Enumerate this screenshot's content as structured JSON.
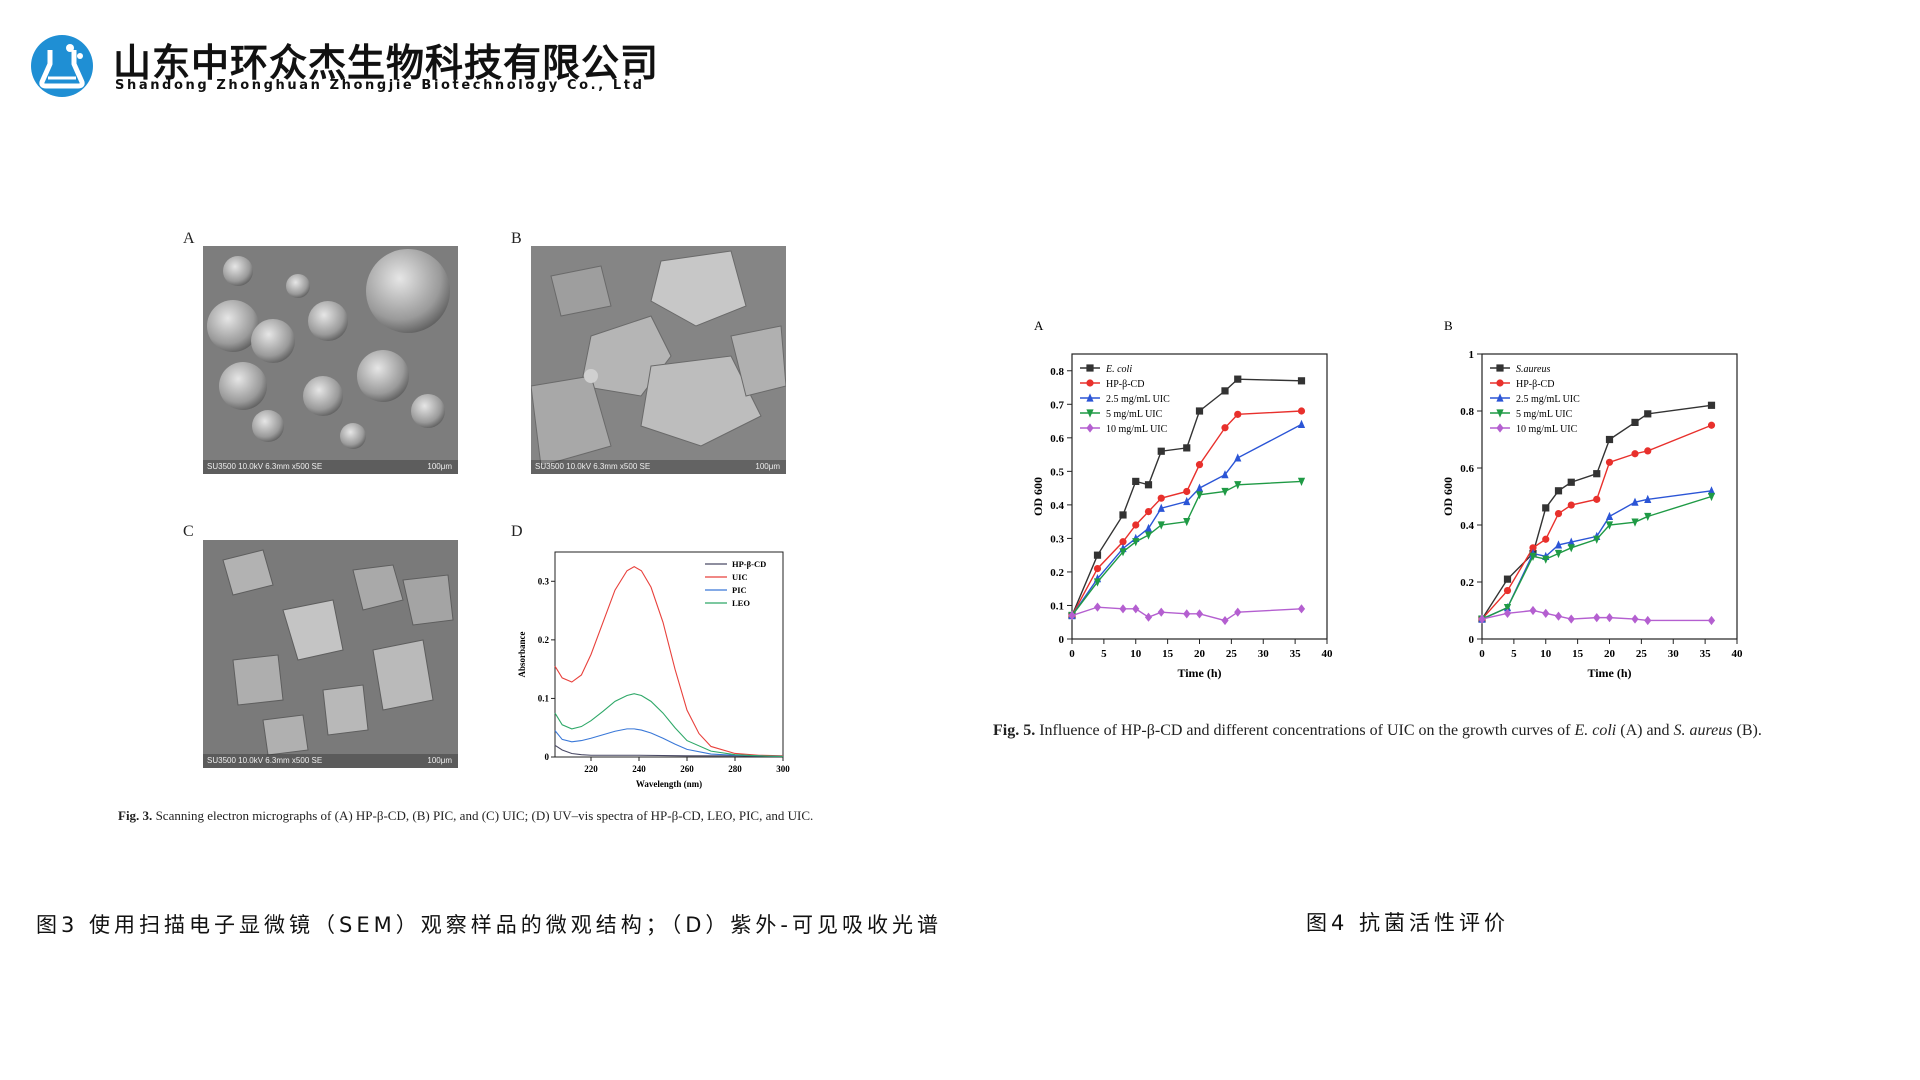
{
  "header": {
    "company_cn": "山东中环众杰生物科技有限公司",
    "company_en": "Shandong Zhonghuan Zhongjie Biotechnology Co., Ltd",
    "logo_icon": "flask-molecule-icon",
    "brand_color": "#1f8fd4"
  },
  "figure3": {
    "panels": {
      "a": {
        "letter": "A",
        "footer": "SU3500 10.0kV 6.3mm x500 SE",
        "scale": "100μm"
      },
      "b": {
        "letter": "B",
        "footer": "SU3500 10.0kV 6.3mm x500 SE",
        "scale": "100μm"
      },
      "c": {
        "letter": "C",
        "footer": "SU3500 10.0kV 6.3mm x500 SE",
        "scale": "100μm"
      },
      "d": {
        "letter": "D"
      }
    },
    "caption_bold": "Fig. 3.",
    "caption_text": "Scanning electron micrographs of (A) HP-β-CD, (B) PIC, and (C) UIC; (D) UV–vis spectra of HP-β-CD, LEO, PIC, and UIC.",
    "cn_caption": "图3 使用扫描电子显微镜（SEM）观察样品的微观结构；（D）紫外-可见吸收光谱"
  },
  "figure4": {
    "caption_bold": "Fig. 5.",
    "caption_parts": [
      "Influence of HP-β-CD and different concentrations of UIC on the growth curves of ",
      "E. coli",
      " (A) and ",
      "S. aureus",
      " (B)."
    ],
    "cn_caption": "图4 抗菌活性评价"
  },
  "chart_data": [
    {
      "panel": "D",
      "type": "line",
      "xlabel": "Wavelength (nm)",
      "ylabel": "Absorbance",
      "xlim": [
        205,
        300
      ],
      "ylim": [
        0,
        0.35
      ],
      "xticks": [
        220,
        240,
        260,
        280,
        300
      ],
      "yticks": [
        0.0,
        0.1,
        0.2,
        0.3
      ],
      "legend_position": "top-right",
      "grid": false,
      "series": [
        {
          "name": "HP-β-CD",
          "color": "#4a4a66",
          "x": [
            205,
            208,
            212,
            216,
            220,
            230,
            240,
            260,
            280,
            300
          ],
          "values": [
            0.02,
            0.012,
            0.006,
            0.004,
            0.003,
            0.003,
            0.003,
            0.002,
            0.002,
            0.001
          ]
        },
        {
          "name": "UIC",
          "color": "#e8413c",
          "x": [
            205,
            208,
            212,
            216,
            220,
            225,
            230,
            235,
            238,
            241,
            245,
            250,
            255,
            260,
            265,
            270,
            280,
            290,
            300
          ],
          "values": [
            0.155,
            0.135,
            0.128,
            0.14,
            0.175,
            0.23,
            0.285,
            0.318,
            0.325,
            0.318,
            0.29,
            0.23,
            0.15,
            0.08,
            0.04,
            0.018,
            0.006,
            0.003,
            0.002
          ]
        },
        {
          "name": "PIC",
          "color": "#3a78d8",
          "x": [
            205,
            208,
            212,
            216,
            220,
            225,
            230,
            235,
            238,
            241,
            245,
            250,
            255,
            260,
            270,
            280,
            290,
            300
          ],
          "values": [
            0.045,
            0.03,
            0.026,
            0.028,
            0.032,
            0.038,
            0.044,
            0.048,
            0.048,
            0.046,
            0.041,
            0.032,
            0.022,
            0.013,
            0.005,
            0.003,
            0.002,
            0.001
          ]
        },
        {
          "name": "LEO",
          "color": "#2ea868",
          "x": [
            205,
            208,
            212,
            216,
            220,
            225,
            230,
            235,
            238,
            241,
            245,
            250,
            255,
            260,
            270,
            280,
            290,
            300
          ],
          "values": [
            0.075,
            0.055,
            0.048,
            0.052,
            0.062,
            0.078,
            0.095,
            0.105,
            0.108,
            0.105,
            0.095,
            0.075,
            0.05,
            0.028,
            0.01,
            0.004,
            0.002,
            0.001
          ]
        }
      ]
    },
    {
      "panel": "A",
      "type": "line",
      "xlabel": "Time (h)",
      "ylabel": "OD 600",
      "xlim": [
        0,
        40
      ],
      "ylim": [
        0,
        0.85
      ],
      "xticks": [
        0,
        5,
        10,
        15,
        20,
        25,
        30,
        35,
        40
      ],
      "yticks": [
        0.0,
        0.1,
        0.2,
        0.3,
        0.4,
        0.5,
        0.6,
        0.7,
        0.8
      ],
      "legend_position": "top-left",
      "grid": false,
      "x": [
        0,
        4,
        8,
        10,
        12,
        14,
        18,
        20,
        24,
        26,
        36
      ],
      "series": [
        {
          "name": "E. coli",
          "color": "#333333",
          "marker": "square",
          "values": [
            0.07,
            0.25,
            0.37,
            0.47,
            0.46,
            0.56,
            0.57,
            0.68,
            0.74,
            0.775,
            0.77
          ]
        },
        {
          "name": "HP-β-CD",
          "color": "#e8302c",
          "marker": "circle",
          "values": [
            0.07,
            0.21,
            0.29,
            0.34,
            0.38,
            0.42,
            0.44,
            0.52,
            0.63,
            0.67,
            0.68
          ]
        },
        {
          "name": "2.5 mg/mL UIC",
          "color": "#2b55d6",
          "marker": "triangle-up",
          "values": [
            0.07,
            0.18,
            0.27,
            0.3,
            0.33,
            0.39,
            0.41,
            0.45,
            0.49,
            0.54,
            0.64
          ]
        },
        {
          "name": "5 mg/mL UIC",
          "color": "#1f9a45",
          "marker": "triangle-down",
          "values": [
            0.07,
            0.17,
            0.26,
            0.29,
            0.31,
            0.34,
            0.35,
            0.43,
            0.44,
            0.46,
            0.47
          ]
        },
        {
          "name": "10 mg/mL UIC",
          "color": "#b45fd0",
          "marker": "diamond",
          "values": [
            0.07,
            0.095,
            0.09,
            0.09,
            0.065,
            0.08,
            0.075,
            0.075,
            0.055,
            0.08,
            0.09
          ]
        }
      ]
    },
    {
      "panel": "B",
      "type": "line",
      "xlabel": "Time (h)",
      "ylabel": "OD 600",
      "xlim": [
        0,
        40
      ],
      "ylim": [
        0,
        1.0
      ],
      "xticks": [
        0,
        5,
        10,
        15,
        20,
        25,
        30,
        35,
        40
      ],
      "yticks": [
        0.0,
        0.2,
        0.4,
        0.6,
        0.8,
        1.0
      ],
      "legend_position": "top-left",
      "grid": false,
      "x": [
        0,
        4,
        8,
        10,
        12,
        14,
        18,
        20,
        24,
        26,
        36
      ],
      "series": [
        {
          "name": "S.aureus",
          "color": "#333333",
          "marker": "square",
          "values": [
            0.07,
            0.21,
            0.3,
            0.46,
            0.52,
            0.55,
            0.58,
            0.7,
            0.76,
            0.79,
            0.82
          ]
        },
        {
          "name": "HP-β-CD",
          "color": "#e8302c",
          "marker": "circle",
          "values": [
            0.07,
            0.17,
            0.32,
            0.35,
            0.44,
            0.47,
            0.49,
            0.62,
            0.65,
            0.66,
            0.75
          ]
        },
        {
          "name": "2.5 mg/mL UIC",
          "color": "#2b55d6",
          "marker": "triangle-up",
          "values": [
            0.07,
            0.11,
            0.3,
            0.29,
            0.33,
            0.34,
            0.36,
            0.43,
            0.48,
            0.49,
            0.52
          ]
        },
        {
          "name": "5 mg/mL UIC",
          "color": "#1f9a45",
          "marker": "triangle-down",
          "values": [
            0.07,
            0.11,
            0.29,
            0.28,
            0.3,
            0.32,
            0.35,
            0.4,
            0.41,
            0.43,
            0.5
          ]
        },
        {
          "name": "10 mg/mL UIC",
          "color": "#b45fd0",
          "marker": "diamond",
          "values": [
            0.07,
            0.09,
            0.1,
            0.09,
            0.08,
            0.07,
            0.075,
            0.075,
            0.07,
            0.065,
            0.065
          ]
        }
      ]
    }
  ]
}
